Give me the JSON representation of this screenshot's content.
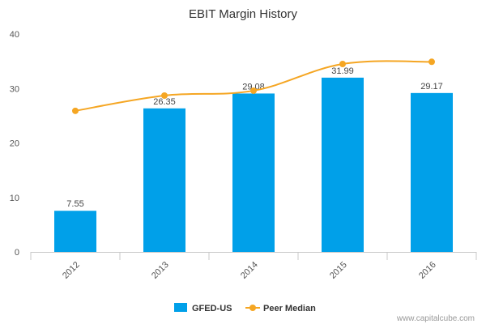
{
  "chart_data": {
    "type": "bar",
    "title": "EBIT Margin History",
    "categories": [
      "2012",
      "2013",
      "2014",
      "2015",
      "2016"
    ],
    "ylim": [
      0,
      40
    ],
    "yticks": [
      0,
      10,
      20,
      30,
      40
    ],
    "grid": false,
    "legend_position": "bottom-center",
    "series": [
      {
        "name": "GFED-US",
        "type": "bar",
        "color": "#00a0e9",
        "values": [
          7.55,
          26.35,
          29.08,
          31.99,
          29.17
        ],
        "labels": [
          "7.55",
          "26.35",
          "29.08",
          "31.99",
          "29.17"
        ]
      },
      {
        "name": "Peer Median",
        "type": "line",
        "color": "#f5a623",
        "values": [
          25.9,
          28.7,
          29.6,
          34.5,
          34.9
        ]
      }
    ]
  },
  "credit": "www.capitalcube.com"
}
